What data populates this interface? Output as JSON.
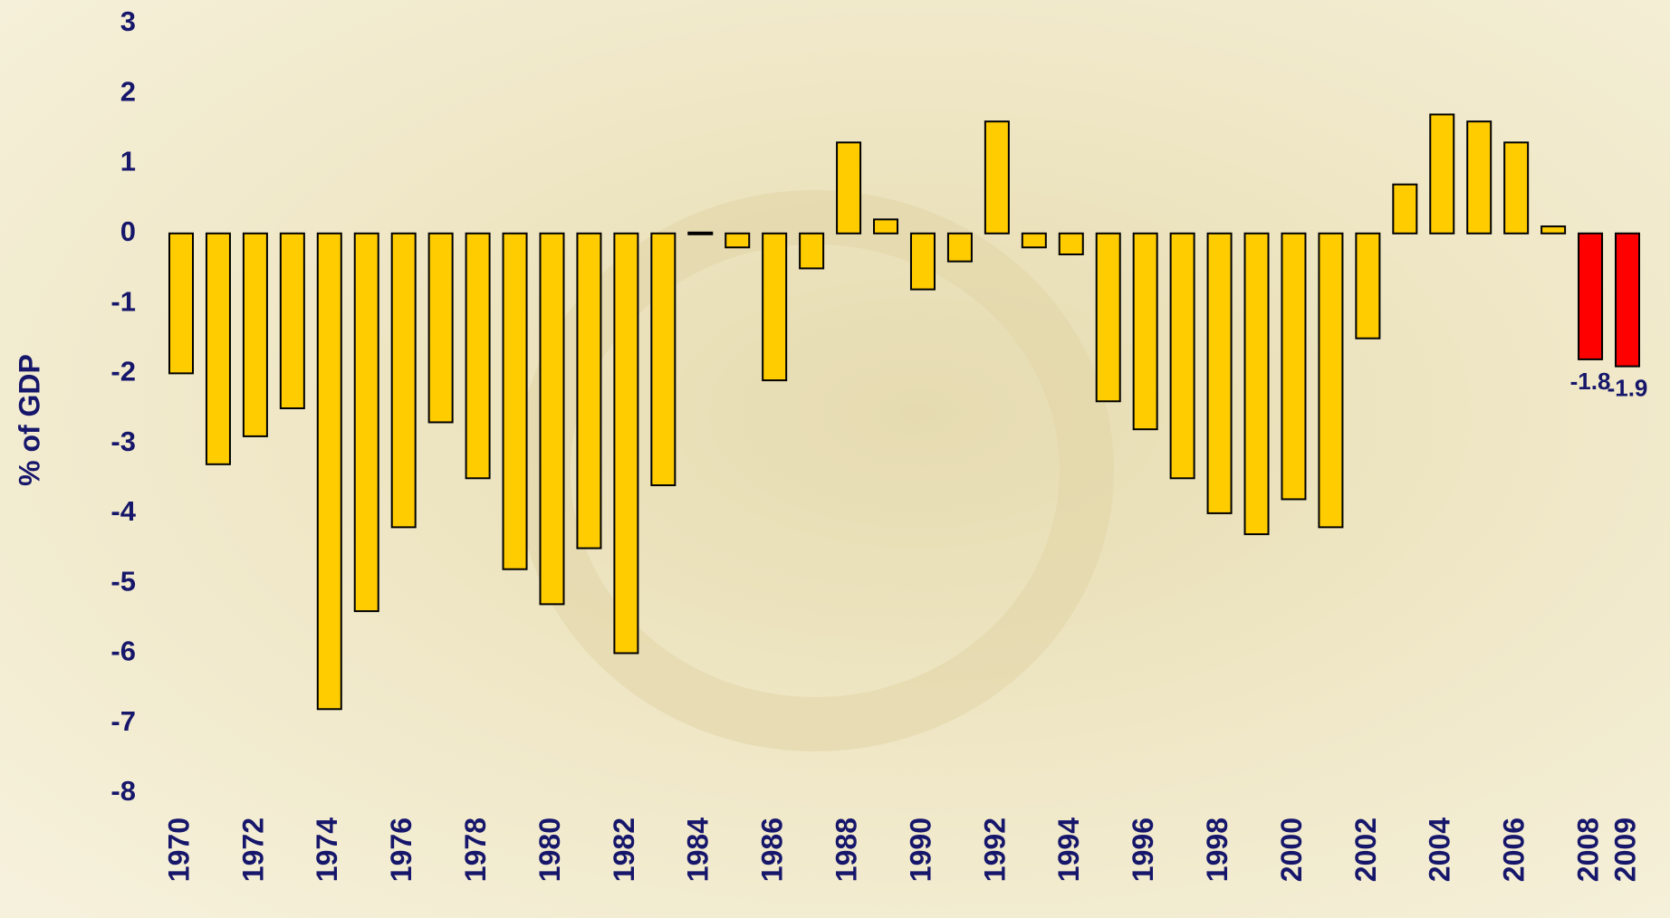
{
  "chart_data": {
    "type": "bar",
    "y_label": "% of GDP",
    "categories": [
      "1970",
      null,
      "1972",
      null,
      "1974",
      null,
      "1976",
      null,
      "1978",
      null,
      "1980",
      null,
      "1982",
      null,
      "1984",
      null,
      "1986",
      null,
      "1988",
      null,
      "1990",
      null,
      "1992",
      null,
      "1994",
      null,
      "1996",
      null,
      "1998",
      null,
      "2000",
      null,
      "2002",
      null,
      "2004",
      null,
      "2006",
      null,
      "2008",
      "2009"
    ],
    "values": [
      -2.0,
      -3.3,
      -2.9,
      -2.5,
      -6.8,
      -5.4,
      -4.2,
      -2.7,
      -3.5,
      -4.8,
      -5.3,
      -4.5,
      -6.0,
      -3.6,
      0,
      -0.2,
      -2.1,
      -0.5,
      1.3,
      0.2,
      -0.8,
      -0.4,
      1.6,
      -0.2,
      -0.3,
      -2.4,
      -2.8,
      -3.5,
      -4.0,
      -4.3,
      -3.8,
      -4.2,
      -1.5,
      0.7,
      1.7,
      1.6,
      1.3,
      0.1,
      -1.8,
      -1.9
    ],
    "value_labels": [
      null,
      null,
      null,
      null,
      null,
      null,
      null,
      null,
      null,
      null,
      null,
      null,
      null,
      null,
      null,
      null,
      null,
      null,
      null,
      null,
      null,
      null,
      null,
      null,
      null,
      null,
      null,
      null,
      null,
      null,
      null,
      null,
      null,
      null,
      null,
      null,
      null,
      null,
      "-1.8",
      "-1.9"
    ],
    "colors": [
      "#ffcc00",
      "#ffcc00",
      "#ffcc00",
      "#ffcc00",
      "#ffcc00",
      "#ffcc00",
      "#ffcc00",
      "#ffcc00",
      "#ffcc00",
      "#ffcc00",
      "#ffcc00",
      "#ffcc00",
      "#ffcc00",
      "#ffcc00",
      "#ffcc00",
      "#ffcc00",
      "#ffcc00",
      "#ffcc00",
      "#ffcc00",
      "#ffcc00",
      "#ffcc00",
      "#ffcc00",
      "#ffcc00",
      "#ffcc00",
      "#ffcc00",
      "#ffcc00",
      "#ffcc00",
      "#ffcc00",
      "#ffcc00",
      "#ffcc00",
      "#ffcc00",
      "#ffcc00",
      "#ffcc00",
      "#ffcc00",
      "#ffcc00",
      "#ffcc00",
      "#ffcc00",
      "#ffcc00",
      "#ff0000",
      "#ff0000"
    ],
    "ylim": [
      -8,
      3
    ],
    "yticks": [
      -8,
      -7,
      -6,
      -5,
      -4,
      -3,
      -2,
      -1,
      0,
      1,
      2,
      3
    ],
    "grid": false
  }
}
